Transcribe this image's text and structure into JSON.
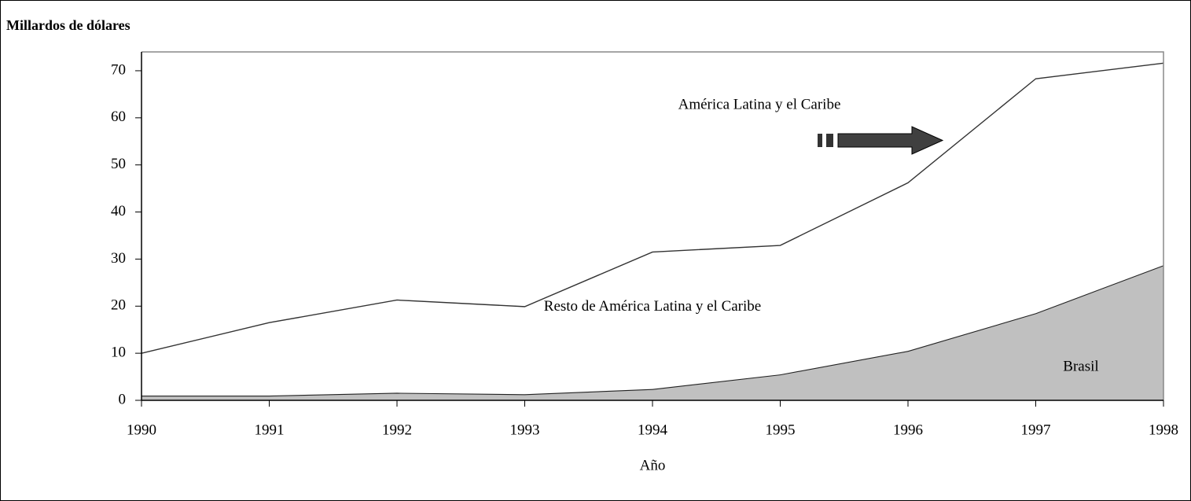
{
  "chart_data": {
    "type": "stacked_area",
    "title": "Millardos de dólares",
    "x_label": "Año",
    "x": [
      1990,
      1991,
      1992,
      1993,
      1994,
      1995,
      1996,
      1997,
      1998
    ],
    "series": [
      {
        "name": "Brasil",
        "color": "#c0c0c0",
        "values": [
          1,
          1,
          1.6,
          1.3,
          2.4,
          5.5,
          10.5,
          18.5,
          28.7
        ]
      },
      {
        "name": "Resto de América Latina y el Caribe",
        "color": "#ffffff",
        "values": [
          9,
          15.5,
          19.7,
          18.6,
          29.1,
          27.4,
          35.7,
          49.8,
          42.9
        ]
      }
    ],
    "annotations": [
      "América Latina y el Caribe"
    ],
    "xlim": [
      1990,
      1998
    ],
    "xticks": [
      1990,
      1991,
      1992,
      1993,
      1994,
      1995,
      1996,
      1997,
      1998
    ],
    "ylim": [
      0,
      74
    ],
    "yticks": [
      0,
      10,
      20,
      30,
      40,
      50,
      60,
      70
    ]
  }
}
